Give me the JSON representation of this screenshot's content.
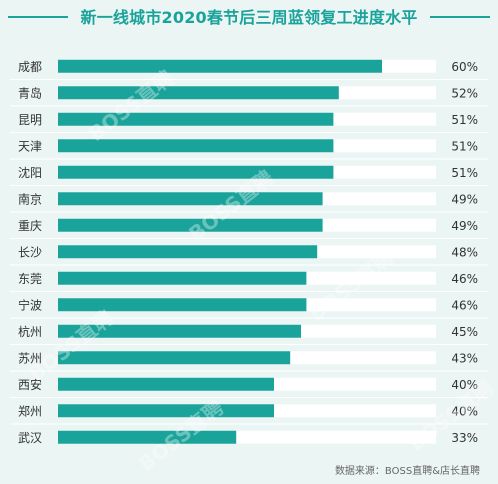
{
  "chart_data": {
    "type": "bar",
    "title": "新一线城市2020春节后三周蓝领复工进度水平",
    "categories": [
      "成都",
      "青岛",
      "昆明",
      "天津",
      "沈阳",
      "南京",
      "重庆",
      "长沙",
      "东莞",
      "宁波",
      "杭州",
      "苏州",
      "西安",
      "郑州",
      "武汉"
    ],
    "values": [
      60,
      52,
      51,
      51,
      51,
      49,
      49,
      48,
      46,
      46,
      45,
      43,
      40,
      40,
      33
    ],
    "value_labels": [
      "60%",
      "52%",
      "51%",
      "51%",
      "51%",
      "49%",
      "49%",
      "48%",
      "46%",
      "46%",
      "45%",
      "43%",
      "40%",
      "40%",
      "33%"
    ],
    "xlim": [
      0,
      70
    ],
    "colors": {
      "bar": "#1aa39a",
      "track": "#ffffff",
      "background": "#ebf5f4",
      "accent": "#1aa39a"
    }
  },
  "source": "数据来源：BOSS直聘&店长直聘",
  "watermark": "BOSS直聘"
}
